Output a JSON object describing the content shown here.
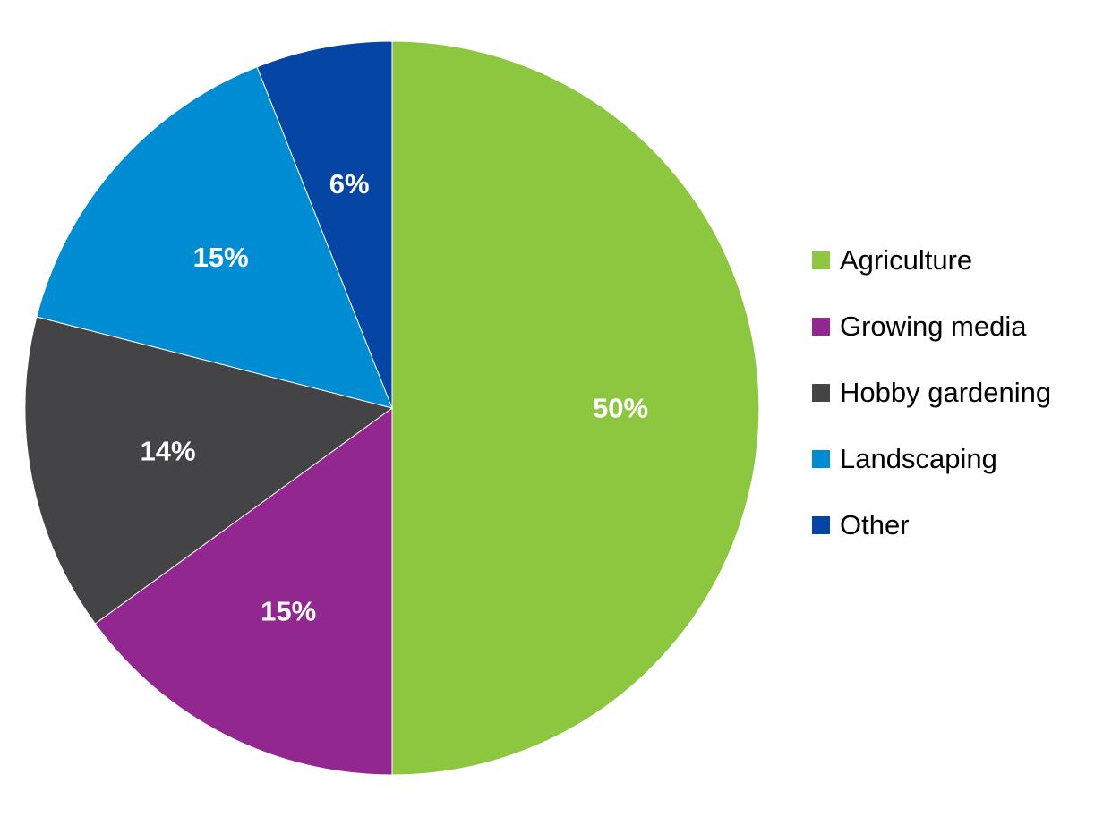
{
  "chart_data": {
    "type": "pie",
    "slices": [
      {
        "name": "Agriculture",
        "value": 50,
        "label": "50%",
        "color": "#8DC63F"
      },
      {
        "name": "Growing media",
        "value": 15,
        "label": "15%",
        "color": "#92278F"
      },
      {
        "name": "Hobby gardening",
        "value": 14,
        "label": "14%",
        "color": "#444446"
      },
      {
        "name": "Landscaping",
        "value": 15,
        "label": "15%",
        "color": "#008CD2"
      },
      {
        "name": "Other",
        "value": 6,
        "label": "6%",
        "color": "#0546A5"
      }
    ],
    "start": "12 o'clock",
    "direction": "clockwise",
    "legend": {
      "position": "right"
    }
  }
}
